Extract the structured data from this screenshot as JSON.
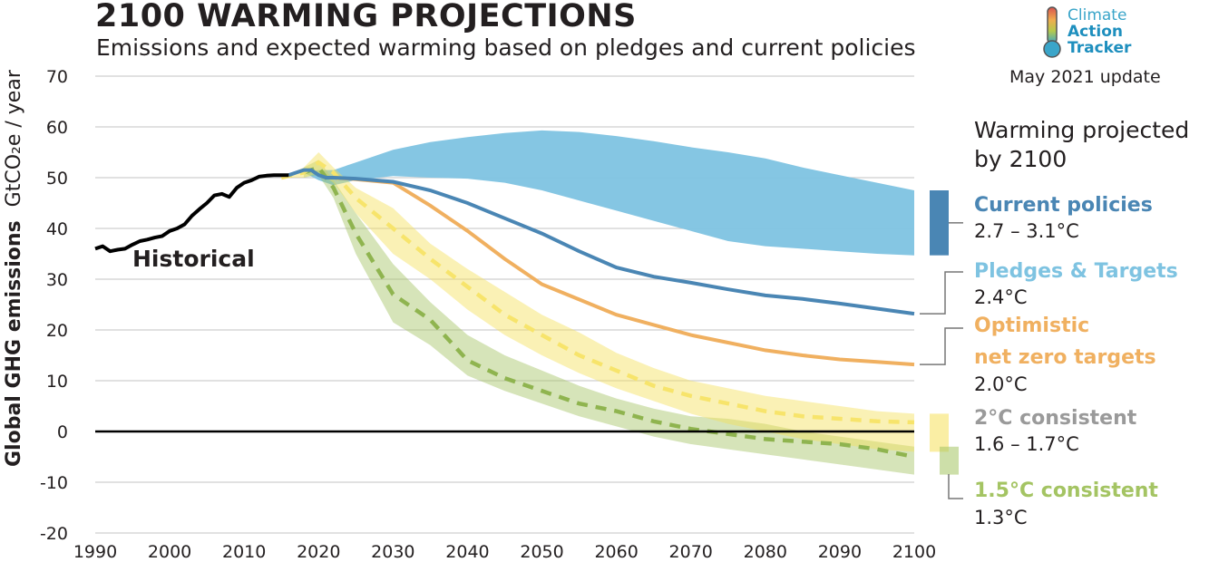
{
  "header": {
    "title": "2100 WARMING PROJECTIONS",
    "subtitle": "Emissions and expected warming based on pledges and current policies",
    "update": "May 2021 update"
  },
  "logo": {
    "line1": "Climate",
    "line2": "Action",
    "line3": "Tracker"
  },
  "legend": {
    "title": "Warming projected by 2100",
    "items": [
      {
        "name": "Current policies",
        "temp": "2.7 – 3.1°C",
        "color": "#4a86b4"
      },
      {
        "name": "Pledges & Targets",
        "temp": "2.4°C",
        "color": "#7ec3e1"
      },
      {
        "name_line1": "Optimistic",
        "name_line2": "net zero targets",
        "temp": "2.0°C",
        "color": "#f0b060"
      },
      {
        "name": "2°C consistent",
        "temp": "1.6 – 1.7°C",
        "color": "#9a9a9a"
      },
      {
        "name": "1.5°C consistent",
        "temp": "1.3°C",
        "color": "#a4c463"
      }
    ]
  },
  "historical_label": "Historical",
  "chart_data": {
    "type": "line",
    "ylabel_main": "Global GHG emissions",
    "ylabel_unit": "GtCO₂e / year",
    "xlim": [
      1990,
      2100
    ],
    "ylim": [
      -20,
      70
    ],
    "x_ticks": [
      1990,
      2000,
      2010,
      2020,
      2030,
      2040,
      2050,
      2060,
      2070,
      2080,
      2090,
      2100
    ],
    "y_ticks": [
      70,
      60,
      50,
      40,
      30,
      20,
      10,
      0,
      -10,
      -20
    ],
    "grid": "horizontal",
    "series": [
      {
        "name": "Historical",
        "color": "#000000",
        "x": [
          1990,
          1991,
          1992,
          1993,
          1994,
          1995,
          1996,
          1997,
          1998,
          1999,
          2000,
          2001,
          2002,
          2003,
          2004,
          2005,
          2006,
          2007,
          2008,
          2009,
          2010,
          2011,
          2012,
          2013,
          2014,
          2015,
          2016
        ],
        "y": [
          36,
          36.5,
          35.5,
          35.8,
          36,
          36.8,
          37.5,
          37.8,
          38.2,
          38.5,
          39.5,
          40,
          40.8,
          42.5,
          43.8,
          45,
          46.5,
          46.8,
          46.2,
          48,
          49,
          49.5,
          50.2,
          50.4,
          50.5,
          50.5,
          50.5
        ]
      },
      {
        "name": "Current policies",
        "type": "band",
        "color": "#7ec3e1",
        "x": [
          2018,
          2020,
          2022,
          2025,
          2030,
          2035,
          2040,
          2045,
          2050,
          2055,
          2060,
          2065,
          2070,
          2075,
          2080,
          2085,
          2090,
          2095,
          2100
        ],
        "upper": [
          51,
          51.5,
          51.5,
          53,
          55.5,
          57,
          58,
          58.8,
          59.3,
          59,
          58.2,
          57.2,
          56,
          55,
          53.8,
          52,
          50.5,
          49,
          47.5
        ],
        "lower": [
          51,
          49.5,
          48.5,
          49.5,
          50.3,
          50,
          49.8,
          49,
          47.5,
          45.5,
          43.5,
          41.5,
          39.5,
          37.5,
          36.5,
          36,
          35.5,
          35,
          34.7
        ]
      },
      {
        "name": "Pledges & Targets",
        "color": "#4a86b4",
        "x": [
          2016,
          2017,
          2018,
          2019,
          2020,
          2021,
          2022,
          2025,
          2030,
          2035,
          2040,
          2045,
          2050,
          2055,
          2060,
          2065,
          2070,
          2075,
          2080,
          2085,
          2090,
          2095,
          2100
        ],
        "y": [
          50.5,
          51,
          51.5,
          51.5,
          50.5,
          50,
          50,
          49.8,
          49.2,
          47.5,
          45,
          42,
          39,
          35.5,
          32.3,
          30.5,
          29.3,
          28,
          26.8,
          26.1,
          25.2,
          24.2,
          23.2
        ]
      },
      {
        "name": "Optimistic net zero targets",
        "color": "#f0b060",
        "x": [
          2022,
          2025,
          2030,
          2035,
          2040,
          2045,
          2050,
          2055,
          2060,
          2065,
          2070,
          2075,
          2080,
          2085,
          2090,
          2095,
          2100
        ],
        "y": [
          50,
          49.7,
          49,
          44.5,
          39.5,
          34,
          29,
          26,
          23,
          21,
          19,
          17.5,
          16,
          15,
          14.2,
          13.7,
          13.2
        ]
      },
      {
        "name": "2°C consistent",
        "type": "band_with_median",
        "color": "#f5e05a",
        "x": [
          2015,
          2018,
          2020,
          2022,
          2025,
          2030,
          2035,
          2040,
          2045,
          2050,
          2055,
          2060,
          2065,
          2070,
          2075,
          2080,
          2085,
          2090,
          2095,
          2100
        ],
        "upper": [
          50,
          52,
          55,
          52,
          48,
          44,
          37,
          32,
          27.5,
          23,
          19.5,
          15.5,
          12.5,
          10,
          8.5,
          7,
          6,
          5,
          4,
          3.5
        ],
        "median": [
          50,
          51,
          53,
          51,
          46,
          40,
          34,
          28.5,
          23,
          19,
          15,
          12,
          9,
          7,
          5.5,
          4,
          3,
          2.5,
          2,
          1.8
        ],
        "lower": [
          50,
          50,
          51,
          49,
          43,
          35,
          30,
          24,
          19,
          15,
          11.5,
          8.5,
          6,
          3.5,
          1.5,
          0,
          -1.5,
          -2.5,
          -3.5,
          -4
        ]
      },
      {
        "name": "1.5°C consistent",
        "type": "band_with_median",
        "color": "#a4c463",
        "x": [
          2018,
          2020,
          2022,
          2025,
          2030,
          2035,
          2040,
          2045,
          2050,
          2055,
          2060,
          2065,
          2070,
          2075,
          2080,
          2085,
          2090,
          2095,
          2100
        ],
        "upper": [
          52,
          53.5,
          49.5,
          43,
          33,
          25.5,
          19,
          15,
          12,
          9,
          6.5,
          4.5,
          3,
          2.5,
          1.5,
          0,
          -1,
          -2,
          -3
        ],
        "median": [
          51,
          52,
          48,
          39,
          27,
          22,
          14,
          10.5,
          8,
          5.5,
          4,
          2,
          0.5,
          -0.5,
          -1.5,
          -2,
          -2.5,
          -3.5,
          -5
        ],
        "lower": [
          50,
          50.5,
          46,
          35,
          21.5,
          17,
          11,
          8,
          5.5,
          3,
          1,
          -1,
          -2.5,
          -3.5,
          -4.5,
          -5.5,
          -6.5,
          -7.5,
          -8.5
        ]
      }
    ]
  }
}
